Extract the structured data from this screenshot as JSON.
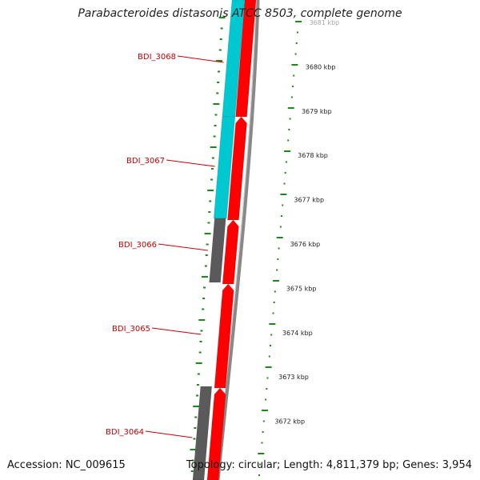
{
  "header": {
    "title": "Parabacteroides distasonis ATCC 8503, complete genome"
  },
  "footer": {
    "accession": "Accession: NC_009615",
    "summary": "Topology: circular; Length: 4,811,379 bp; Genes: 3,954"
  },
  "genes": [
    "BDI_3068",
    "BDI_3067",
    "BDI_3066",
    "BDI_3065",
    "BDI_3064"
  ],
  "ticks": [
    "3681 kbp",
    "3680 kbp",
    "3679 kbp",
    "3678 kbp",
    "3677 kbp",
    "3676 kbp",
    "3675 kbp",
    "3674 kbp",
    "3673 kbp",
    "3672 kbp"
  ],
  "colors": {
    "cds_forward": "#ff0000",
    "cds_cyan": "#00c8d0",
    "cds_gray": "#5a5a5a",
    "backbone": "#888888",
    "ticks": "#1a8a1a",
    "label": "#cc0000"
  }
}
